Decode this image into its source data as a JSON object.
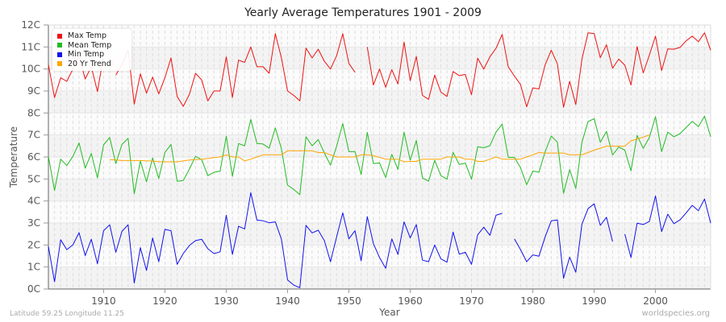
{
  "header": {
    "title": "Yearly Average Temperatures 1901 - 2009"
  },
  "footer": {
    "location": "Latitude 59.25 Longitude 11.25",
    "source": "worldspecies.org"
  },
  "colors": {
    "max": "#ee1111",
    "mean": "#22bb22",
    "min": "#1111ee",
    "trend": "#ffa500"
  },
  "chart_data": {
    "type": "line",
    "title": "Yearly Average Temperatures 1901 - 2009",
    "xlabel": "Year",
    "ylabel": "Temperature",
    "xlim": [
      1901,
      2009
    ],
    "ylim": [
      0,
      12
    ],
    "x_ticks": [
      1910,
      1920,
      1930,
      1940,
      1950,
      1960,
      1970,
      1980,
      1990,
      2000
    ],
    "y_ticks": [
      "0C",
      "1C",
      "2C",
      "3C",
      "4C",
      "5C",
      "6C",
      "7C",
      "8C",
      "9C",
      "10C",
      "11C",
      "12C"
    ],
    "legend": [
      "Max Temp",
      "Mean Temp",
      "Min Temp",
      "20 Yr Trend"
    ],
    "legend_position": "top-left",
    "grid": true,
    "x_start": 1901,
    "series": [
      {
        "name": "Max Temp",
        "values": [
          10.2,
          8.7,
          9.6,
          9.44,
          10.0,
          10.6,
          9.54,
          10.1,
          8.97,
          10.6,
          null,
          9.72,
          10.2,
          10.85,
          8.4,
          9.78,
          8.9,
          9.63,
          8.87,
          9.6,
          10.5,
          8.75,
          8.3,
          8.85,
          9.8,
          9.5,
          8.55,
          9.0,
          9.0,
          10.55,
          8.7,
          10.4,
          10.3,
          11.0,
          10.1,
          10.1,
          9.8,
          11.6,
          10.5,
          9.0,
          8.8,
          8.55,
          10.95,
          10.5,
          10.9,
          10.35,
          10.0,
          10.6,
          11.6,
          10.25,
          9.85,
          null,
          11.0,
          9.27,
          10.0,
          9.17,
          9.97,
          9.32,
          11.22,
          9.47,
          10.57,
          8.8,
          8.62,
          9.72,
          8.95,
          8.75,
          9.88,
          9.7,
          9.75,
          8.83,
          10.49,
          9.99,
          10.55,
          10.94,
          11.57,
          10.09,
          9.68,
          9.29,
          8.28,
          9.14,
          9.09,
          10.19,
          10.85,
          10.23,
          8.26,
          9.44,
          8.38,
          10.45,
          11.64,
          11.61,
          10.51,
          11.1,
          10.03,
          10.45,
          10.17,
          9.27,
          11.02,
          9.82,
          10.63,
          11.49,
          9.93,
          10.91,
          10.9,
          10.98,
          11.28,
          11.49,
          11.24,
          11.64,
          10.85
        ]
      },
      {
        "name": "Mean Temp",
        "values": [
          6.03,
          4.48,
          5.9,
          5.61,
          6.03,
          6.64,
          5.49,
          6.16,
          5.05,
          6.55,
          6.89,
          5.7,
          6.57,
          6.85,
          4.33,
          5.82,
          4.87,
          5.96,
          5.02,
          6.2,
          6.57,
          4.9,
          4.93,
          5.45,
          6.03,
          5.88,
          5.15,
          5.3,
          5.36,
          6.94,
          5.12,
          6.61,
          6.51,
          7.71,
          6.61,
          6.59,
          6.4,
          7.32,
          6.37,
          4.72,
          4.53,
          4.29,
          6.92,
          6.51,
          6.79,
          6.18,
          5.63,
          6.49,
          7.52,
          6.24,
          6.24,
          5.2,
          7.12,
          5.7,
          5.73,
          5.07,
          6.12,
          5.43,
          7.13,
          5.85,
          6.75,
          5.05,
          4.9,
          5.85,
          5.15,
          4.99,
          6.21,
          5.66,
          5.72,
          4.99,
          6.46,
          6.42,
          6.51,
          7.13,
          7.49,
          5.98,
          5.98,
          5.51,
          4.74,
          5.36,
          5.31,
          6.24,
          6.95,
          6.67,
          4.35,
          5.43,
          4.57,
          6.67,
          7.61,
          7.74,
          6.67,
          7.16,
          6.09,
          6.45,
          6.31,
          5.37,
          6.98,
          6.39,
          6.89,
          7.83,
          6.24,
          7.13,
          6.92,
          7.06,
          7.34,
          7.62,
          7.38,
          7.85,
          6.92
        ]
      },
      {
        "name": "Min Temp",
        "values": [
          1.94,
          0.33,
          2.24,
          1.79,
          2.01,
          2.56,
          1.52,
          2.26,
          1.15,
          2.65,
          2.92,
          1.67,
          2.62,
          2.92,
          0.27,
          1.88,
          0.84,
          2.32,
          1.24,
          2.71,
          2.65,
          1.12,
          1.61,
          1.98,
          2.2,
          2.26,
          1.83,
          1.61,
          1.69,
          3.35,
          1.57,
          2.85,
          2.73,
          4.38,
          3.13,
          3.1,
          3.01,
          3.05,
          2.26,
          0.41,
          0.18,
          0.06,
          2.89,
          2.55,
          2.67,
          2.2,
          1.24,
          2.37,
          3.46,
          2.28,
          2.65,
          1.28,
          3.29,
          2.06,
          1.43,
          0.94,
          2.28,
          1.57,
          3.05,
          2.32,
          2.93,
          1.31,
          1.24,
          2.0,
          1.37,
          1.22,
          2.59,
          1.58,
          1.67,
          1.12,
          2.46,
          2.81,
          2.44,
          3.35,
          3.44,
          null,
          2.28,
          1.79,
          1.24,
          1.55,
          1.49,
          2.37,
          3.1,
          3.14,
          0.49,
          1.45,
          0.76,
          2.95,
          3.65,
          3.87,
          2.89,
          3.26,
          2.16,
          null,
          2.49,
          1.43,
          2.99,
          2.93,
          3.07,
          4.23,
          2.61,
          3.4,
          2.97,
          3.14,
          3.46,
          3.8,
          3.56,
          4.09,
          2.99
        ]
      },
      {
        "name": "20 Yr Trend",
        "values": [
          null,
          null,
          null,
          null,
          null,
          null,
          null,
          null,
          null,
          null,
          5.88,
          5.86,
          5.84,
          5.84,
          5.84,
          5.84,
          5.82,
          5.82,
          5.78,
          5.78,
          5.78,
          5.78,
          5.82,
          5.86,
          5.88,
          5.9,
          5.93,
          5.97,
          6.0,
          6.1,
          6.0,
          6.0,
          5.82,
          5.9,
          6.0,
          6.1,
          6.1,
          6.1,
          6.1,
          6.28,
          6.28,
          6.28,
          6.28,
          6.28,
          6.2,
          6.2,
          6.1,
          6.0,
          6.0,
          6.0,
          6.0,
          6.1,
          6.1,
          6.06,
          5.98,
          5.9,
          5.9,
          5.9,
          5.78,
          5.8,
          5.8,
          5.9,
          5.9,
          5.9,
          5.9,
          6.0,
          6.0,
          6.0,
          5.9,
          5.9,
          5.8,
          5.8,
          5.9,
          6.0,
          5.9,
          5.9,
          5.9,
          5.9,
          6.0,
          6.1,
          6.2,
          6.18,
          6.18,
          6.18,
          6.18,
          6.1,
          6.1,
          6.1,
          6.2,
          6.31,
          6.4,
          6.49,
          6.49,
          6.49,
          6.49,
          6.73,
          6.82,
          6.9,
          7.0
        ]
      }
    ]
  }
}
